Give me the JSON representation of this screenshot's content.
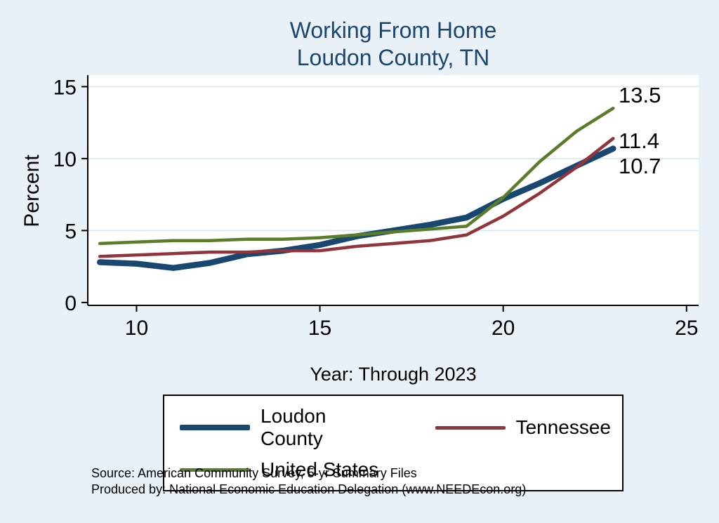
{
  "chart_data": {
    "type": "line",
    "title_lines": [
      "Working From Home",
      "Loudon County, TN"
    ],
    "ylabel": "Percent",
    "xlabel": "Year: Through 2023",
    "x": [
      9,
      10,
      11,
      12,
      13,
      14,
      15,
      16,
      17,
      18,
      19,
      20,
      21,
      22,
      23
    ],
    "series": [
      {
        "name": "Loudon County",
        "color": "#1a476f",
        "width": 8.5,
        "values": [
          2.8,
          2.7,
          2.4,
          2.75,
          3.35,
          3.6,
          4.0,
          4.6,
          5.0,
          5.4,
          5.9,
          7.2,
          8.3,
          9.5,
          10.7
        ]
      },
      {
        "name": "Tennessee",
        "color": "#90353b",
        "width": 4.5,
        "values": [
          3.2,
          3.3,
          3.4,
          3.5,
          3.5,
          3.6,
          3.6,
          3.9,
          4.1,
          4.3,
          4.7,
          6.0,
          7.6,
          9.4,
          11.4
        ]
      },
      {
        "name": "United States",
        "color": "#5b7d2a",
        "width": 4.5,
        "values": [
          4.1,
          4.2,
          4.3,
          4.3,
          4.4,
          4.4,
          4.5,
          4.7,
          4.9,
          5.1,
          5.3,
          7.3,
          9.8,
          11.9,
          13.5
        ]
      }
    ],
    "xlim": [
      8.67,
      25.33
    ],
    "ylim": [
      -0.2,
      15.8
    ],
    "xticks": [
      10,
      15,
      20,
      25
    ],
    "yticks": [
      0,
      5,
      10,
      15
    ],
    "grid": "horizontal",
    "legend_position": "bottom",
    "end_labels": [
      {
        "series": "United States",
        "text": "13.5"
      },
      {
        "series": "Tennessee",
        "text": "11.4"
      },
      {
        "series": "Loudon County",
        "text": "10.7"
      }
    ],
    "colors": {
      "background": "#e9f1f7",
      "plot_background": "#ffffff",
      "grid": "#d7e6f0",
      "axis": "#000000",
      "title": "#1a476f"
    }
  },
  "footer": {
    "source": "Source: American Community Survey, 5-yr Summary Files",
    "produced_by": "Produced by: National Economic Education Delegation (www.NEEDEcon.org)"
  }
}
